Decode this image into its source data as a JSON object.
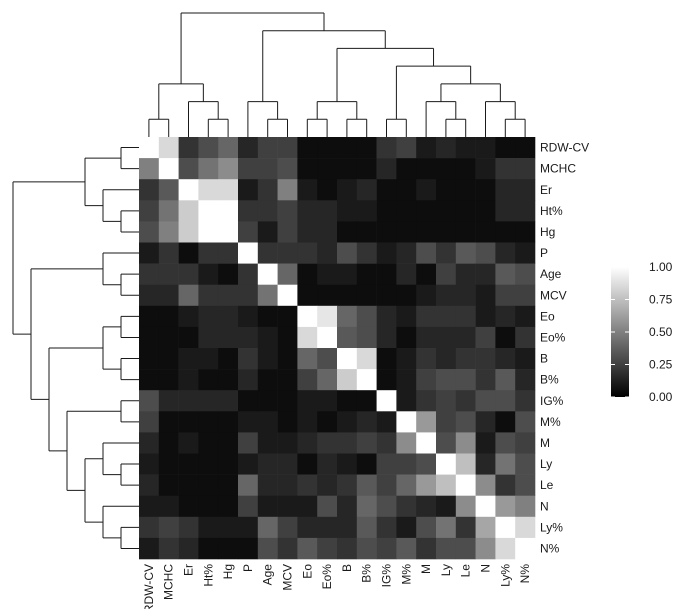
{
  "chart_data": {
    "type": "heatmap",
    "title": "",
    "xlabel": "",
    "ylabel": "",
    "variables": [
      "RDW-CV",
      "MCHC",
      "Er",
      "Ht%",
      "Hg",
      "P",
      "Age",
      "MCV",
      "Eo",
      "Eo%",
      "B",
      "B%",
      "IG%",
      "M%",
      "M",
      "Ly",
      "Le",
      "N",
      "Ly%",
      "N%"
    ],
    "values": [
      [
        1.0,
        0.85,
        0.2,
        0.3,
        0.4,
        0.15,
        0.25,
        0.25,
        0.05,
        0.05,
        0.05,
        0.05,
        0.2,
        0.25,
        0.1,
        0.15,
        0.1,
        0.1,
        0.05,
        0.05
      ],
      [
        0.5,
        1.0,
        0.3,
        0.45,
        0.55,
        0.25,
        0.25,
        0.3,
        0.05,
        0.05,
        0.05,
        0.05,
        0.15,
        0.05,
        0.05,
        0.05,
        0.05,
        0.1,
        0.2,
        0.2
      ],
      [
        0.2,
        0.35,
        1.0,
        0.85,
        0.85,
        0.1,
        0.2,
        0.5,
        0.1,
        0.05,
        0.1,
        0.15,
        0.05,
        0.05,
        0.1,
        0.05,
        0.05,
        0.05,
        0.15,
        0.15
      ],
      [
        0.25,
        0.45,
        0.8,
        1.0,
        1.0,
        0.2,
        0.2,
        0.25,
        0.15,
        0.15,
        0.1,
        0.1,
        0.05,
        0.05,
        0.05,
        0.05,
        0.05,
        0.05,
        0.15,
        0.15
      ],
      [
        0.3,
        0.5,
        0.8,
        1.0,
        1.0,
        0.25,
        0.1,
        0.25,
        0.15,
        0.15,
        0.05,
        0.05,
        0.05,
        0.05,
        0.05,
        0.05,
        0.05,
        0.05,
        0.05,
        0.05
      ],
      [
        0.1,
        0.2,
        0.05,
        0.2,
        0.2,
        1.0,
        0.2,
        0.2,
        0.2,
        0.15,
        0.3,
        0.2,
        0.1,
        0.15,
        0.3,
        0.2,
        0.35,
        0.3,
        0.15,
        0.1
      ],
      [
        0.2,
        0.2,
        0.2,
        0.1,
        0.05,
        0.2,
        1.0,
        0.4,
        0.05,
        0.1,
        0.1,
        0.05,
        0.05,
        0.15,
        0.05,
        0.25,
        0.15,
        0.15,
        0.35,
        0.3
      ],
      [
        0.15,
        0.15,
        0.4,
        0.2,
        0.2,
        0.2,
        0.45,
        1.0,
        0.05,
        0.05,
        0.05,
        0.05,
        0.05,
        0.05,
        0.1,
        0.15,
        0.15,
        0.1,
        0.25,
        0.25
      ],
      [
        0.05,
        0.05,
        0.1,
        0.15,
        0.15,
        0.1,
        0.05,
        0.05,
        1.0,
        0.9,
        0.4,
        0.3,
        0.15,
        0.1,
        0.2,
        0.2,
        0.2,
        0.1,
        0.15,
        0.1
      ],
      [
        0.05,
        0.05,
        0.05,
        0.15,
        0.15,
        0.15,
        0.1,
        0.05,
        0.85,
        1.0,
        0.35,
        0.3,
        0.15,
        0.05,
        0.15,
        0.15,
        0.15,
        0.25,
        0.05,
        0.2
      ],
      [
        0.05,
        0.05,
        0.1,
        0.1,
        0.05,
        0.2,
        0.1,
        0.05,
        0.4,
        0.3,
        1.0,
        0.85,
        0.05,
        0.1,
        0.2,
        0.15,
        0.2,
        0.2,
        0.15,
        0.1
      ],
      [
        0.05,
        0.05,
        0.1,
        0.05,
        0.05,
        0.15,
        0.05,
        0.05,
        0.25,
        0.4,
        0.8,
        1.0,
        0.05,
        0.1,
        0.25,
        0.3,
        0.3,
        0.2,
        0.35,
        0.15
      ],
      [
        0.3,
        0.15,
        0.15,
        0.15,
        0.15,
        0.05,
        0.05,
        0.05,
        0.1,
        0.1,
        0.05,
        0.05,
        1.0,
        0.1,
        0.2,
        0.25,
        0.2,
        0.3,
        0.3,
        0.2
      ],
      [
        0.25,
        0.05,
        0.05,
        0.05,
        0.05,
        0.1,
        0.1,
        0.05,
        0.1,
        0.05,
        0.1,
        0.15,
        0.1,
        1.0,
        0.6,
        0.25,
        0.3,
        0.15,
        0.05,
        0.3
      ],
      [
        0.15,
        0.05,
        0.1,
        0.05,
        0.05,
        0.25,
        0.1,
        0.1,
        0.15,
        0.2,
        0.2,
        0.25,
        0.2,
        0.55,
        1.0,
        0.3,
        0.55,
        0.1,
        0.3,
        0.25
      ],
      [
        0.1,
        0.05,
        0.05,
        0.05,
        0.05,
        0.1,
        0.15,
        0.15,
        0.05,
        0.15,
        0.1,
        0.05,
        0.25,
        0.25,
        0.3,
        1.0,
        0.75,
        0.15,
        0.45,
        0.3
      ],
      [
        0.15,
        0.05,
        0.05,
        0.05,
        0.05,
        0.4,
        0.15,
        0.15,
        0.2,
        0.15,
        0.2,
        0.35,
        0.25,
        0.4,
        0.6,
        0.75,
        1.0,
        0.55,
        0.2,
        0.3
      ],
      [
        0.1,
        0.1,
        0.05,
        0.05,
        0.05,
        0.25,
        0.1,
        0.1,
        0.1,
        0.3,
        0.15,
        0.4,
        0.3,
        0.2,
        0.15,
        0.1,
        0.55,
        1.0,
        0.6,
        0.5
      ],
      [
        0.2,
        0.25,
        0.2,
        0.1,
        0.1,
        0.1,
        0.4,
        0.25,
        0.15,
        0.15,
        0.15,
        0.35,
        0.2,
        0.1,
        0.3,
        0.45,
        0.2,
        0.65,
        1.0,
        0.85
      ],
      [
        0.1,
        0.2,
        0.15,
        0.05,
        0.05,
        0.05,
        0.3,
        0.2,
        0.35,
        0.25,
        0.2,
        0.3,
        0.25,
        0.35,
        0.2,
        0.3,
        0.3,
        0.55,
        0.85,
        1.0
      ]
    ],
    "dendrogram": [
      [
        "RDW-CV",
        "MCHC"
      ],
      [
        "Ht%",
        "Hg"
      ],
      [
        "Er",
        [
          "Ht%",
          "Hg"
        ]
      ],
      [
        [
          "RDW-CV",
          "MCHC"
        ],
        [
          "Er",
          [
            "Ht%",
            "Hg"
          ]
        ]
      ],
      [
        "Age",
        "MCV"
      ],
      [
        "P",
        [
          "Age",
          "MCV"
        ]
      ],
      [
        "Eo",
        "Eo%"
      ],
      [
        "B",
        "B%"
      ],
      [
        [
          "Eo",
          "Eo%"
        ],
        [
          "B",
          "B%"
        ]
      ],
      [
        "IG%",
        "M%"
      ],
      [
        "Ly",
        "Le"
      ],
      [
        "M",
        [
          "Ly",
          "Le"
        ]
      ],
      [
        "Ly%",
        "N%"
      ],
      [
        "N",
        [
          "Ly%",
          "N%"
        ]
      ],
      [
        [
          "M",
          [
            "Ly",
            "Le"
          ]
        ],
        [
          "N",
          [
            "Ly%",
            "N%"
          ]
        ]
      ],
      [
        [
          "IG%",
          "M%"
        ],
        [
          [
            "M",
            [
              "Ly",
              "Le"
            ]
          ],
          [
            "N",
            [
              "Ly%",
              "N%"
            ]
          ]
        ]
      ],
      [
        [
          [
            "Eo",
            "Eo%"
          ],
          [
            "B",
            "B%"
          ]
        ],
        [
          [
            "IG%",
            "M%"
          ],
          [
            [
              "M",
              [
                "Ly",
                "Le"
              ]
            ],
            [
              "N",
              [
                "Ly%",
                "N%"
              ]
            ]
          ]
        ]
      ],
      [
        [
          "P",
          [
            "Age",
            "MCV"
          ]
        ],
        [
          [
            [
              "Eo",
              "Eo%"
            ],
            [
              "B",
              "B%"
            ]
          ],
          [
            [
              "IG%",
              "M%"
            ],
            [
              [
                "M",
                [
                  "Ly",
                  "Le"
                ]
              ],
              [
                "N",
                [
                  "Ly%",
                  "N%"
                ]
              ]
            ]
          ]
        ]
      ],
      [
        [
          [
            "RDW-CV",
            "MCHC"
          ],
          [
            "Er",
            [
              "Ht%",
              "Hg"
            ]
          ]
        ],
        [
          [
            "P",
            [
              "Age",
              "MCV"
            ]
          ],
          [
            [
              [
                "Eo",
                "Eo%"
              ],
              [
                "B",
                "B%"
              ]
            ],
            [
              [
                "IG%",
                "M%"
              ],
              [
                [
                  "M",
                  [
                    "Ly",
                    "Le"
                  ]
                ],
                [
                  "N",
                  [
                    "Ly%",
                    "N%"
                  ]
                ]
              ]
            ]
          ]
        ]
      ]
    ],
    "color_scale": {
      "min": 0,
      "max": 1,
      "low_color": "#000000",
      "high_color": "#ffffff",
      "tick_labels": [
        "0.00",
        "0.25",
        "0.50",
        "0.75",
        "1.00"
      ],
      "tick_values": [
        0,
        0.25,
        0.5,
        0.75,
        1.0
      ]
    },
    "legend_position": "right"
  }
}
